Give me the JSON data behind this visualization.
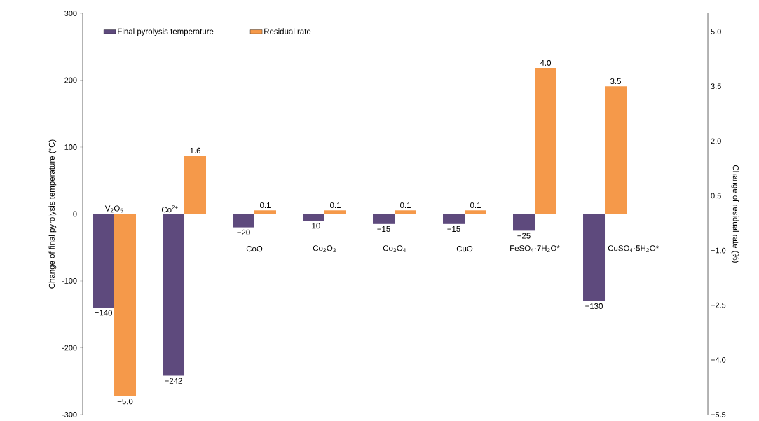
{
  "chart_data": {
    "type": "bar",
    "categories": [
      "V$_{2}$O$_{5}$",
      "Co$^{2+}$",
      "CoO",
      "Co$_{2}$O$_{3}$",
      "Co$_{3}$O$_{4}$",
      "CuO",
      "FeSO$_{4}$·7H$_{2}$O*",
      "CuSO$_{4}$·5H$_{2}$O*"
    ],
    "ylabel": "Change of final pyrolysis temperature (°C)",
    "y2label": "Change of residual rate (%)",
    "ylim": [
      -300,
      300
    ],
    "yticks": [
      -300,
      -200,
      -100,
      0,
      100,
      200,
      300
    ],
    "y2lim": [
      -5.5,
      5.5
    ],
    "y2ticks": [
      {
        "value": -5.5,
        "label": "−5.5"
      },
      {
        "value": -4.0,
        "label": "−4.0"
      },
      {
        "value": -2.5,
        "label": "−2.5"
      },
      {
        "value": -1.0,
        "label": "−1.0"
      },
      {
        "value": 0.5,
        "label": "0.5"
      },
      {
        "value": 2.0,
        "label": "2.0"
      },
      {
        "value": 3.5,
        "label": "3.5"
      },
      {
        "value": 5.0,
        "label": "5.0"
      }
    ],
    "legend": "top left",
    "series": [
      {
        "name": "Final pyrolysis temperature",
        "color": "#5e4a7d",
        "values": [
          -140,
          -242,
          -20,
          -10,
          -15,
          -15,
          -25,
          -130
        ],
        "value_labels": [
          "−140",
          "−242",
          "−20",
          "−10",
          "−15",
          "−15",
          "−25",
          "−130"
        ]
      },
      {
        "name": "Residual rate",
        "color": "#f5994a",
        "axis": "y2",
        "values": [
          -5.0,
          1.6,
          0.1,
          0.1,
          0.1,
          0.1,
          4.0,
          3.5
        ],
        "value_labels": [
          "−5.0",
          "1.6",
          "0.1",
          "0.1",
          "0.1",
          "0.1",
          "4.0",
          "3.5"
        ]
      }
    ]
  }
}
